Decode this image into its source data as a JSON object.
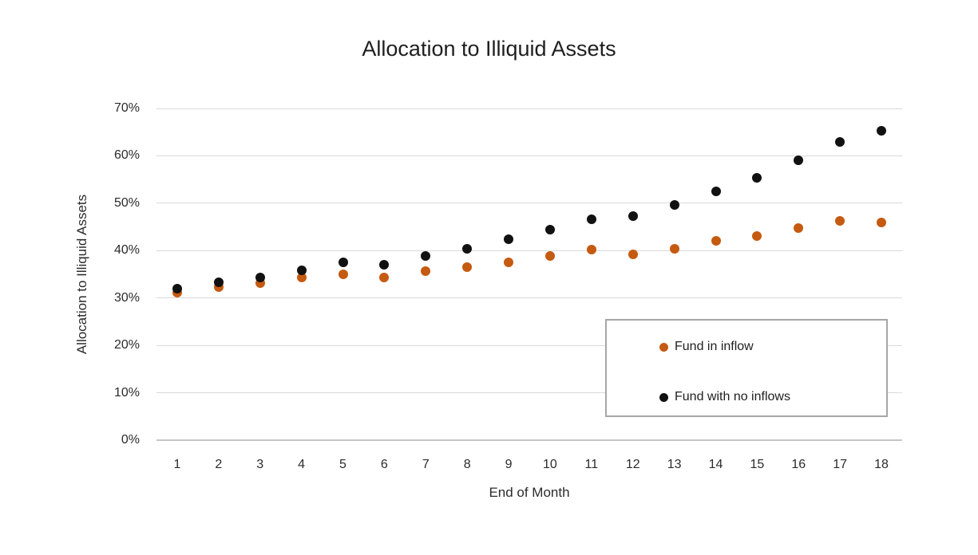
{
  "colors": {
    "background": "#ffffff",
    "gridline": "#d9d9d9",
    "axis_line": "#c6c6c6",
    "tick_text": "#2b2b2b",
    "title_text": "#1f1f1f",
    "legend_border": "#a6a6a6",
    "series_fund_in_inflow": "#c55a11",
    "series_fund_no_inflows": "#111111"
  },
  "chart_data": {
    "type": "scatter",
    "title": "Allocation to Illiquid Assets",
    "xlabel": "End of Month",
    "ylabel": "Allocation to Illiquid Assets",
    "x": [
      1,
      2,
      3,
      4,
      5,
      6,
      7,
      8,
      9,
      10,
      11,
      12,
      13,
      14,
      15,
      16,
      17,
      18
    ],
    "ylim": [
      0,
      70
    ],
    "y_tick_step": 10,
    "y_tick_labels": [
      "0%",
      "10%",
      "20%",
      "30%",
      "40%",
      "50%",
      "60%",
      "70%"
    ],
    "grid": "horizontal-only",
    "legend_position": "inside-right",
    "series": [
      {
        "name": "Fund in inflow",
        "color": "#c55a11",
        "marker": "circle",
        "values": [
          31.2,
          32.3,
          33.2,
          34.3,
          35.0,
          34.4,
          35.7,
          36.5,
          37.6,
          38.8,
          40.3,
          39.2,
          40.4,
          42.1,
          43.1,
          44.8,
          46.3,
          45.9
        ]
      },
      {
        "name": "Fund with no inflows",
        "color": "#111111",
        "marker": "circle",
        "values": [
          32.0,
          33.3,
          34.3,
          35.9,
          37.5,
          37.1,
          38.9,
          40.4,
          42.4,
          44.5,
          46.6,
          47.2,
          49.6,
          52.5,
          55.4,
          59.1,
          62.9,
          65.3
        ]
      }
    ]
  }
}
